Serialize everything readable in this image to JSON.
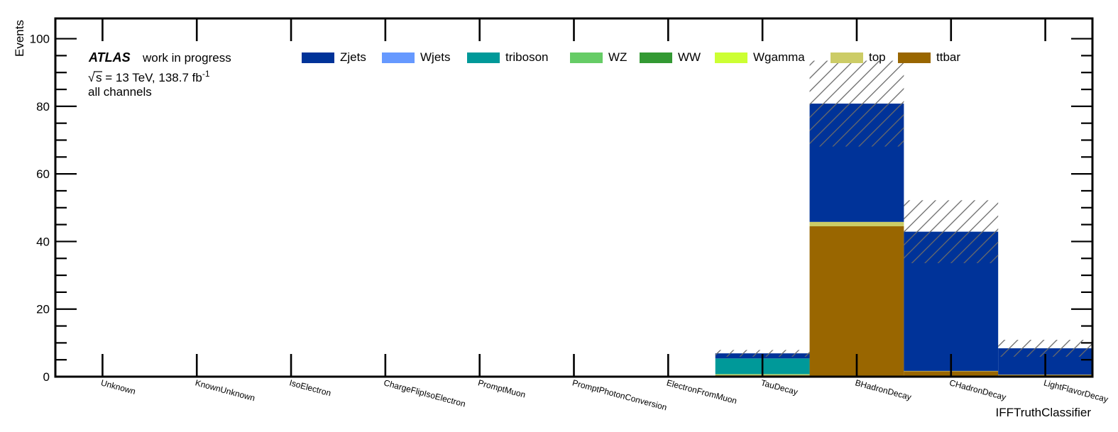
{
  "chart_data": {
    "type": "bar",
    "stacked": true,
    "categories": [
      "Unknown",
      "KnownUnknown",
      "IsoElectron",
      "ChargeFlipIsoElectron",
      "PromptMuon",
      "PromptPhotonConversion",
      "ElectronFromMuon",
      "TauDecay",
      "BHadronDecay",
      "CHadronDecay",
      "LightFlavorDecay"
    ],
    "series": [
      {
        "name": "ttbar",
        "color": "#996600",
        "values": [
          0,
          0,
          0,
          0,
          0,
          0,
          0,
          0.4,
          44.5,
          1.6,
          0.5
        ]
      },
      {
        "name": "top",
        "color": "#CCCC66",
        "values": [
          0,
          0,
          0,
          0,
          0,
          0,
          0,
          0.2,
          1.3,
          0.1,
          0.1
        ]
      },
      {
        "name": "Wgamma",
        "color": "#CCFF33",
        "values": [
          0,
          0,
          0,
          0,
          0,
          0,
          0,
          0,
          0,
          0,
          0
        ]
      },
      {
        "name": "WW",
        "color": "#339933",
        "values": [
          0,
          0,
          0,
          0,
          0,
          0,
          0,
          0.1,
          0,
          0,
          0
        ]
      },
      {
        "name": "WZ",
        "color": "#66CC66",
        "values": [
          0,
          0,
          0,
          0,
          0,
          0,
          0,
          0.1,
          0,
          0,
          0
        ]
      },
      {
        "name": "triboson",
        "color": "#009999",
        "values": [
          0,
          0,
          0,
          0,
          0,
          0,
          0,
          4.6,
          0,
          0,
          0
        ]
      },
      {
        "name": "Wjets",
        "color": "#6699FF",
        "values": [
          0,
          0,
          0,
          0,
          0,
          0,
          0,
          0,
          0,
          0,
          0
        ]
      },
      {
        "name": "Zjets",
        "color": "#003399",
        "values": [
          0,
          0,
          0,
          0,
          0,
          0,
          0,
          1.5,
          35.0,
          41.2,
          7.8
        ]
      }
    ],
    "uncertainty": [
      0,
      0,
      0,
      0,
      0,
      0,
      0,
      1.0,
      12.7,
      9.3,
      2.5
    ],
    "legend_order": [
      "Zjets",
      "Wjets",
      "triboson",
      "WZ",
      "WW",
      "Wgamma",
      "top",
      "ttbar"
    ],
    "legend_placement": "top",
    "ylim": [
      0,
      106
    ],
    "yticks": [
      "0",
      "20",
      "40",
      "60",
      "80",
      "100"
    ],
    "ylabel": "Events",
    "xlabel": "IFFTruthClassifier",
    "grid": false
  },
  "annotation": {
    "atlas": "ATLAS",
    "status": "work in progress",
    "energy_prefix": "s",
    "energy_main": " = 13 TeV, 138.7 fb",
    "energy_exp": "-1",
    "channels": "all channels"
  }
}
